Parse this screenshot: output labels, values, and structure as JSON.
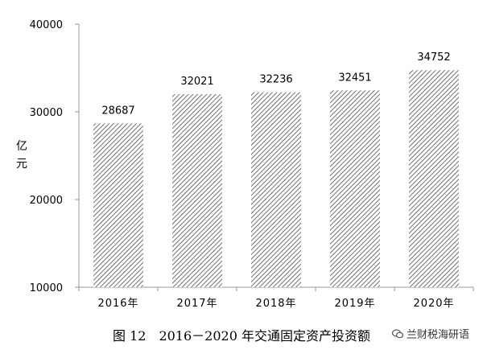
{
  "chart_data": {
    "type": "bar",
    "categories": [
      "2016年",
      "2017年",
      "2018年",
      "2019年",
      "2020年"
    ],
    "values": [
      28687,
      32021,
      32236,
      32451,
      34752
    ],
    "data_labels": [
      "28687",
      "32021",
      "32236",
      "32451",
      "34752"
    ],
    "ylabel": [
      "亿",
      "元"
    ],
    "ylim": [
      10000,
      40000
    ],
    "yticks": [
      10000,
      20000,
      30000,
      40000
    ],
    "ytick_labels": [
      "10000",
      "20000",
      "30000",
      "40000"
    ],
    "grid": false,
    "bar_pattern": "diagonal-hatch",
    "bar_color": "#4d4d4d"
  },
  "caption": "图 12　2016－2020 年交通固定资产投资额",
  "watermark": {
    "icon": "wechat-icon",
    "text": "兰财税海研语"
  }
}
